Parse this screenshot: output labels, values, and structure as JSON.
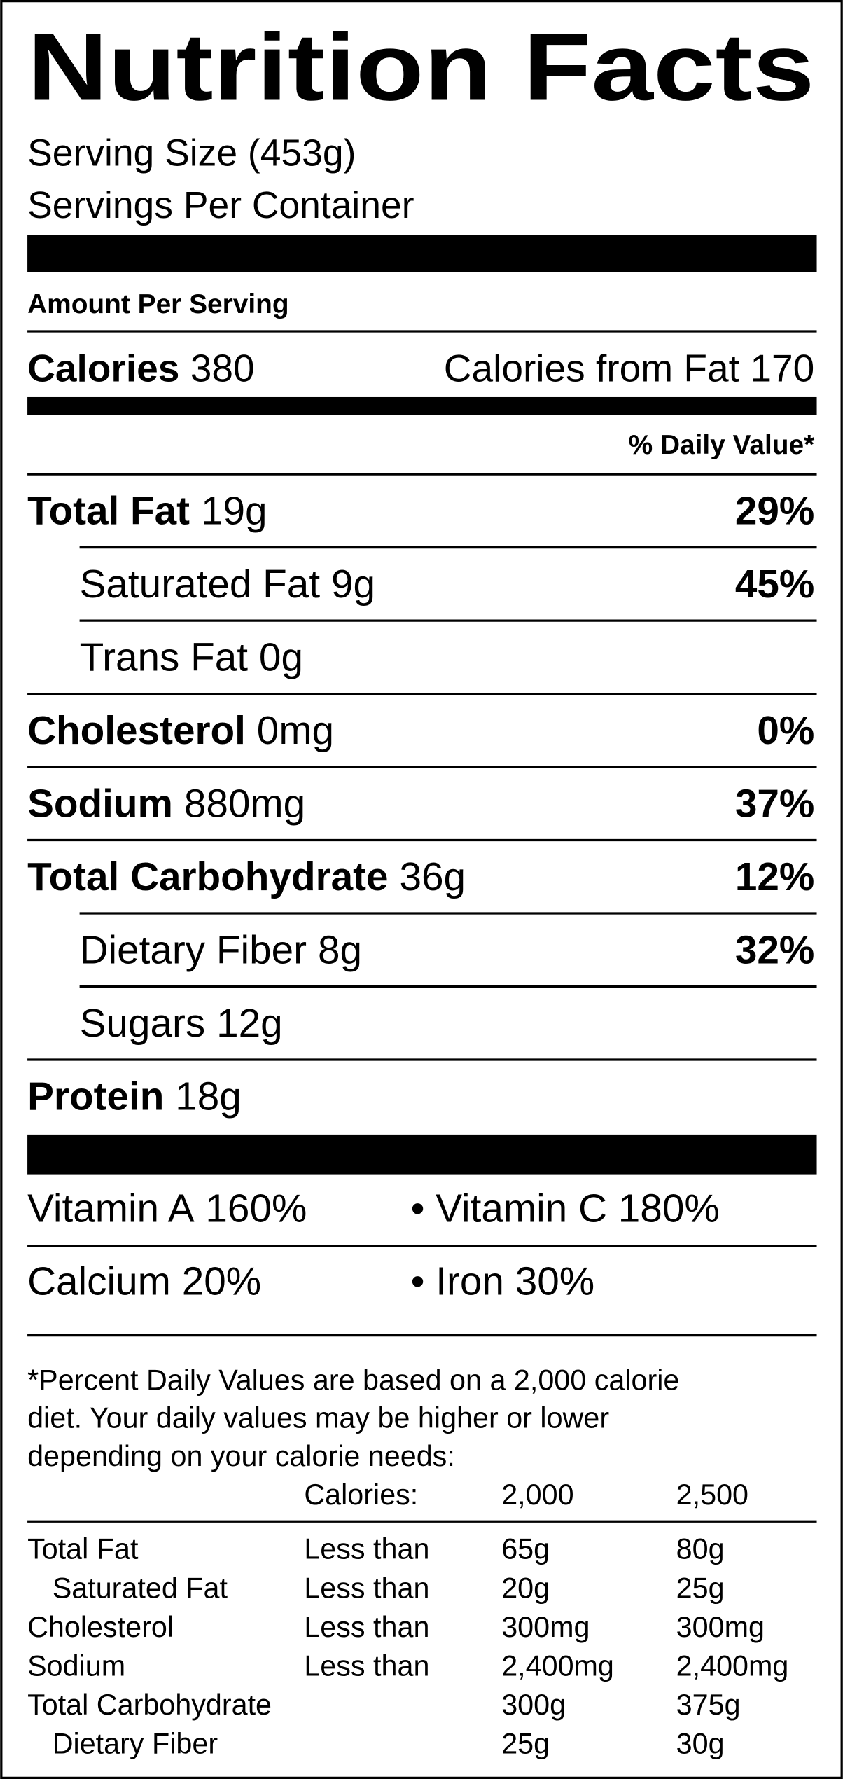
{
  "title": "Nutrition Facts",
  "serving_size": "Serving Size (453g)",
  "servings_per_container": "Servings Per Container",
  "amount_per_serving": "Amount Per Serving",
  "calories": {
    "label": "Calories",
    "value": "380"
  },
  "calories_from_fat": {
    "label": "Calories from Fat",
    "value": "170"
  },
  "daily_value_header": "% Daily Value*",
  "nutrients": [
    {
      "name": "Total Fat",
      "amount": "19g",
      "dv": "29%",
      "sub": [
        {
          "name": "Saturated Fat",
          "amount": "9g",
          "dv": "45%"
        },
        {
          "name": "Trans Fat",
          "amount": "0g"
        }
      ]
    },
    {
      "name": "Cholesterol",
      "amount": "0mg",
      "dv": "0%"
    },
    {
      "name": "Sodium",
      "amount": "880mg",
      "dv": "37%"
    },
    {
      "name": "Total Carbohydrate",
      "amount": "36g",
      "dv": "12%",
      "sub": [
        {
          "name": "Dietary Fiber",
          "amount": "8g",
          "dv": "32%"
        },
        {
          "name": "Sugars",
          "amount": "12g"
        }
      ]
    },
    {
      "name": "Protein",
      "amount": "18g"
    }
  ],
  "vitamins": [
    [
      {
        "name": "Vitamin A",
        "value": "160%"
      },
      {
        "name": "• Vitamin C",
        "value": "180%"
      }
    ],
    [
      {
        "name": "Calcium",
        "value": "20%"
      },
      {
        "name": "• Iron",
        "value": "30%"
      }
    ]
  ],
  "footnote": [
    "*Percent Daily Values are based on a 2,000 calorie",
    "diet. Your daily values may be higher or lower",
    "depending on your calorie needs:"
  ],
  "table": {
    "header": [
      "Calories:",
      "2,000",
      "2,500"
    ],
    "rows": [
      {
        "name": "Total Fat",
        "limit": "Less than",
        "v2000": "65g",
        "v2500": "80g",
        "sub": [
          {
            "name": "Saturated Fat",
            "limit": "Less than",
            "v2000": "20g",
            "v2500": "25g"
          }
        ]
      },
      {
        "name": "Cholesterol",
        "limit": "Less than",
        "v2000": "300mg",
        "v2500": "300mg"
      },
      {
        "name": "Sodium",
        "limit": "Less than",
        "v2000": "2,400mg",
        "v2500": "2,400mg"
      },
      {
        "name": "Total Carbohydrate",
        "v2000": "300g",
        "v2500": "375g",
        "sub": [
          {
            "name": "Dietary Fiber",
            "v2000": "25g",
            "v2500": "30g"
          }
        ]
      }
    ]
  }
}
